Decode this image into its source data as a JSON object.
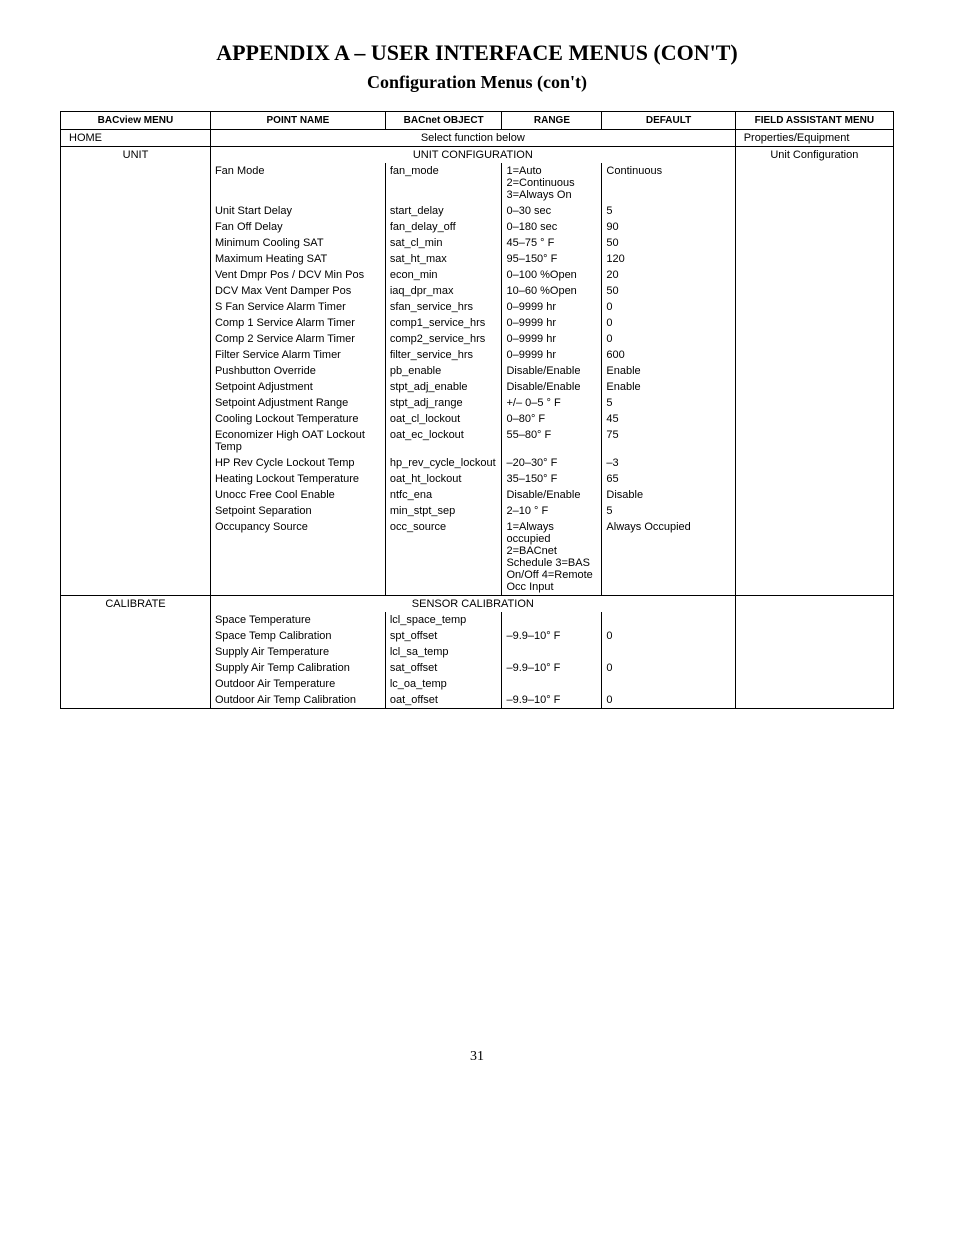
{
  "title": "APPENDIX A – USER INTERFACE MENUS (CON'T)",
  "subtitle": "Configuration Menus (con't)",
  "pageNumber": "31",
  "headers": {
    "col1": "BACview MENU",
    "col2": "POINT NAME",
    "col3": "BACnet OBJECT",
    "col4": "RANGE",
    "col5": "DEFAULT",
    "col6": "FIELD ASSISTANT MENU"
  },
  "homeRow": {
    "menu": "HOME",
    "center": "Select function below",
    "fa": "Properties/Equipment"
  },
  "unitRow": {
    "menu": "UNIT",
    "center": "UNIT CONFIGURATION",
    "fa": "Unit Configuration"
  },
  "unitRows": [
    {
      "pn": "Fan Mode",
      "bo": "fan_mode",
      "rg": "1=Auto 2=Continuous 3=Always On",
      "df": "Continuous"
    },
    {
      "pn": "Unit Start Delay",
      "bo": "start_delay",
      "rg": "0–30 sec",
      "df": "5"
    },
    {
      "pn": "Fan Off Delay",
      "bo": "fan_delay_off",
      "rg": "0–180 sec",
      "df": "90"
    },
    {
      "pn": "Minimum Cooling SAT",
      "bo": "sat_cl_min",
      "rg": "45–75 ° F",
      "df": "50"
    },
    {
      "pn": "Maximum Heating SAT",
      "bo": "sat_ht_max",
      "rg": "95–150° F",
      "df": "120"
    },
    {
      "pn": "Vent Dmpr Pos / DCV Min Pos",
      "bo": "econ_min",
      "rg": "0–100 %Open",
      "df": "20"
    },
    {
      "pn": "DCV Max Vent Damper Pos",
      "bo": "iaq_dpr_max",
      "rg": "10–60 %Open",
      "df": "50"
    },
    {
      "pn": "S Fan Service Alarm Timer",
      "bo": "sfan_service_hrs",
      "rg": "0–9999 hr",
      "df": "0"
    },
    {
      "pn": "Comp 1 Service Alarm Timer",
      "bo": "comp1_service_hrs",
      "rg": "0–9999 hr",
      "df": "0"
    },
    {
      "pn": "Comp 2 Service Alarm Timer",
      "bo": "comp2_service_hrs",
      "rg": "0–9999 hr",
      "df": "0"
    },
    {
      "pn": "Filter Service Alarm Timer",
      "bo": "filter_service_hrs",
      "rg": "0–9999 hr",
      "df": "600"
    },
    {
      "pn": "Pushbutton Override",
      "bo": "pb_enable",
      "rg": "Disable/Enable",
      "df": "Enable"
    },
    {
      "pn": "Setpoint Adjustment",
      "bo": "stpt_adj_enable",
      "rg": "Disable/Enable",
      "df": "Enable"
    },
    {
      "pn": "Setpoint Adjustment Range",
      "bo": "stpt_adj_range",
      "rg": "+/– 0–5 ° F",
      "df": "5"
    },
    {
      "pn": "Cooling Lockout Temperature",
      "bo": "oat_cl_lockout",
      "rg": "0–80° F",
      "df": "45"
    },
    {
      "pn": "Economizer High OAT Lockout Temp",
      "bo": "oat_ec_lockout",
      "rg": "55–80° F",
      "df": "75"
    },
    {
      "pn": "HP Rev Cycle Lockout Temp",
      "bo": "hp_rev_cycle_lockout",
      "rg": "–20–30° F",
      "df": "–3"
    },
    {
      "pn": "Heating Lockout Temperature",
      "bo": "oat_ht_lockout",
      "rg": "35–150° F",
      "df": "65"
    },
    {
      "pn": "Unocc Free Cool Enable",
      "bo": "ntfc_ena",
      "rg": "Disable/Enable",
      "df": "Disable"
    },
    {
      "pn": "Setpoint Separation",
      "bo": "min_stpt_sep",
      "rg": "2–10 ° F",
      "df": "5"
    },
    {
      "pn": "Occupancy Source",
      "bo": "occ_source",
      "rg": "1=Always occupied 2=BACnet Schedule 3=BAS On/Off 4=Remote Occ Input",
      "df": "Always Occupied"
    }
  ],
  "calibRow": {
    "menu": "CALIBRATE",
    "center": "SENSOR CALIBRATION",
    "fa": ""
  },
  "calibRows": [
    {
      "pn": "Space Temperature",
      "bo": "lcl_space_temp",
      "rg": "",
      "df": ""
    },
    {
      "pn": "Space Temp Calibration",
      "bo": "spt_offset",
      "rg": "–9.9–10° F",
      "df": "0"
    },
    {
      "pn": "Supply Air Temperature",
      "bo": "lcl_sa_temp",
      "rg": "",
      "df": ""
    },
    {
      "pn": "Supply Air Temp Calibration",
      "bo": "sat_offset",
      "rg": "–9.9–10° F",
      "df": "0"
    },
    {
      "pn": "Outdoor Air Temperature",
      "bo": "lc_oa_temp",
      "rg": "",
      "df": ""
    },
    {
      "pn": "Outdoor Air Temp Calibration",
      "bo": "oat_offset",
      "rg": "–9.9–10° F",
      "df": "0"
    }
  ]
}
